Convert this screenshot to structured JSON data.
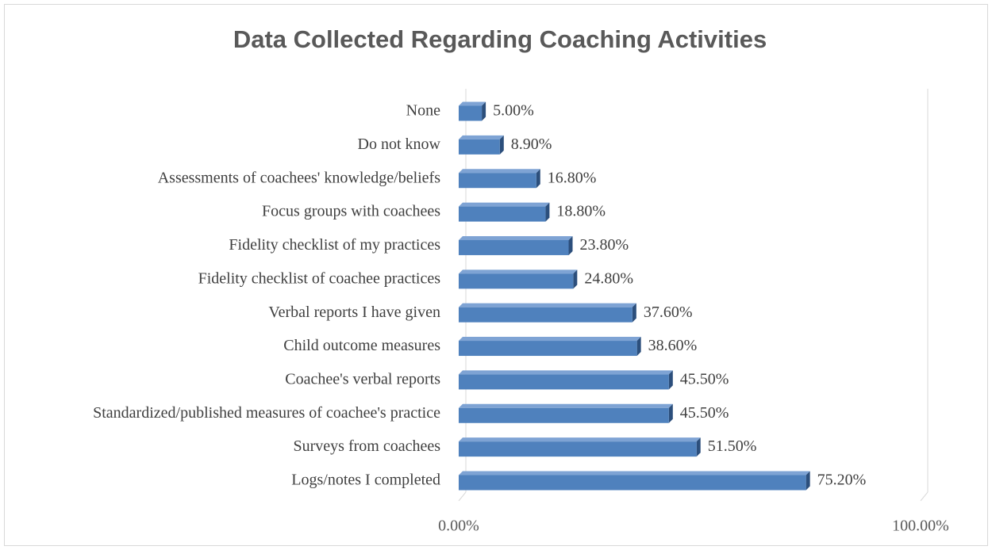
{
  "chart_data": {
    "type": "bar",
    "orientation": "horizontal",
    "title": "Data Collected Regarding Coaching Activities",
    "categories": [
      "None",
      "Do not know",
      "Assessments of coachees' knowledge/beliefs",
      "Focus groups with coachees",
      "Fidelity checklist of my practices",
      "Fidelity checklist of coachee practices",
      "Verbal reports I have given",
      "Child outcome measures",
      "Coachee's verbal reports",
      "Standardized/published measures of coachee's practice",
      "Surveys from coachees",
      "Logs/notes I completed"
    ],
    "values": [
      5,
      8.9,
      16.8,
      18.8,
      23.8,
      24.8,
      37.6,
      38.6,
      45.5,
      45.5,
      51.5,
      75.2
    ],
    "value_labels": [
      "5.00%",
      "8.90%",
      "16.80%",
      "18.80%",
      "23.80%",
      "24.80%",
      "37.60%",
      "38.60%",
      "45.50%",
      "45.50%",
      "51.50%",
      "75.20%"
    ],
    "color": "#4f81bd",
    "xlim": [
      0,
      100
    ],
    "xticks": [
      {
        "value": 0,
        "label": "0.00%"
      },
      {
        "value": 100,
        "label": "100.00%"
      }
    ]
  }
}
